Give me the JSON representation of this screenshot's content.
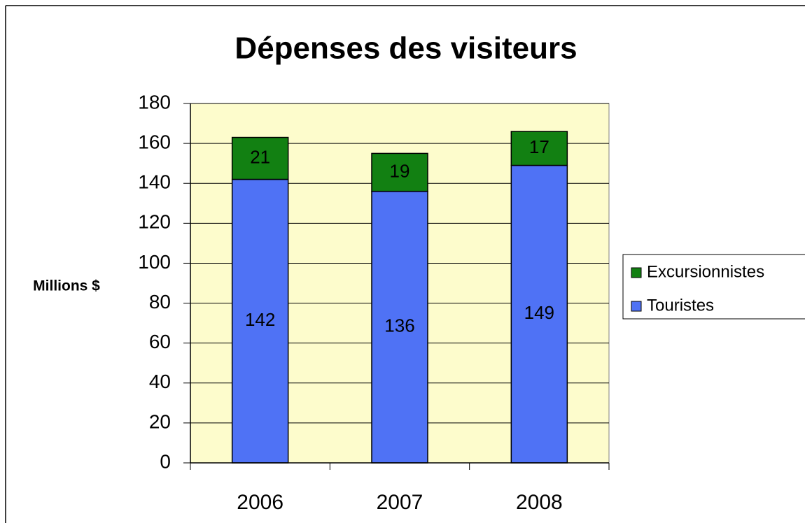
{
  "chart_data": {
    "type": "stacked_bar",
    "title": "Dépenses des visiteurs",
    "y_label": "Millions $",
    "categories": [
      "2006",
      "2007",
      "2008"
    ],
    "series": [
      {
        "name": "Touristes",
        "color": "#4f72f5",
        "values": [
          142,
          136,
          149
        ]
      },
      {
        "name": "Excursionnistes",
        "color": "#128012",
        "values": [
          21,
          19,
          17
        ]
      }
    ],
    "ylim": [
      0,
      180
    ],
    "yticks": [
      0,
      20,
      40,
      60,
      80,
      100,
      120,
      140,
      160,
      180
    ],
    "grid": true,
    "legend": "right",
    "plot_background": "#fdfccc"
  }
}
